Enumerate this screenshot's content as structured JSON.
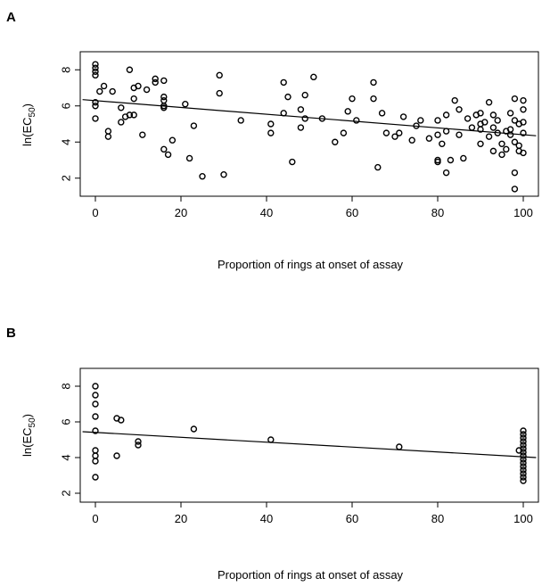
{
  "chart_data": [
    {
      "panel": "A",
      "type": "scatter",
      "xlabel": "Proportion of rings at onset of assay",
      "ylabel_main": "ln(EC",
      "ylabel_sub": "50",
      "ylabel_close": ")",
      "xlim": [
        0,
        100
      ],
      "ylim": [
        1,
        9
      ],
      "xticks": [
        0,
        20,
        40,
        60,
        80,
        100
      ],
      "yticks": [
        2,
        4,
        6,
        8
      ],
      "grid": false,
      "marker": "open-circle",
      "fit_line": {
        "x": [
          -3,
          103
        ],
        "y": [
          6.35,
          4.35
        ]
      },
      "points": [
        [
          0,
          8.3
        ],
        [
          0,
          8.1
        ],
        [
          0,
          7.9
        ],
        [
          0,
          7.7
        ],
        [
          0,
          6.2
        ],
        [
          0,
          6.0
        ],
        [
          0,
          5.3
        ],
        [
          1,
          6.8
        ],
        [
          2,
          7.1
        ],
        [
          3,
          4.6
        ],
        [
          3,
          4.3
        ],
        [
          4,
          6.8
        ],
        [
          6,
          5.9
        ],
        [
          6,
          5.1
        ],
        [
          7,
          5.4
        ],
        [
          8,
          8.0
        ],
        [
          8,
          5.5
        ],
        [
          9,
          7.0
        ],
        [
          9,
          6.4
        ],
        [
          9,
          5.5
        ],
        [
          10,
          7.1
        ],
        [
          11,
          4.4
        ],
        [
          12,
          6.9
        ],
        [
          14,
          7.5
        ],
        [
          14,
          7.3
        ],
        [
          16,
          7.4
        ],
        [
          16,
          6.5
        ],
        [
          16,
          6.3
        ],
        [
          16,
          6.0
        ],
        [
          16,
          5.9
        ],
        [
          16,
          3.6
        ],
        [
          17,
          3.3
        ],
        [
          18,
          4.1
        ],
        [
          21,
          6.1
        ],
        [
          22,
          3.1
        ],
        [
          23,
          4.9
        ],
        [
          25,
          2.1
        ],
        [
          29,
          7.7
        ],
        [
          29,
          6.7
        ],
        [
          30,
          2.2
        ],
        [
          34,
          5.2
        ],
        [
          41,
          5.0
        ],
        [
          41,
          4.5
        ],
        [
          44,
          7.3
        ],
        [
          44,
          5.6
        ],
        [
          45,
          6.5
        ],
        [
          46,
          2.9
        ],
        [
          48,
          5.8
        ],
        [
          48,
          4.8
        ],
        [
          49,
          6.6
        ],
        [
          49,
          5.3
        ],
        [
          51,
          7.6
        ],
        [
          53,
          5.3
        ],
        [
          56,
          4.0
        ],
        [
          58,
          4.5
        ],
        [
          59,
          5.7
        ],
        [
          60,
          6.4
        ],
        [
          61,
          5.2
        ],
        [
          65,
          7.3
        ],
        [
          65,
          6.4
        ],
        [
          66,
          2.6
        ],
        [
          67,
          5.6
        ],
        [
          68,
          4.5
        ],
        [
          70,
          4.3
        ],
        [
          71,
          4.5
        ],
        [
          72,
          5.4
        ],
        [
          74,
          4.1
        ],
        [
          75,
          4.9
        ],
        [
          76,
          5.2
        ],
        [
          78,
          4.2
        ],
        [
          80,
          5.2
        ],
        [
          80,
          4.4
        ],
        [
          80,
          3.0
        ],
        [
          80,
          2.9
        ],
        [
          81,
          3.9
        ],
        [
          82,
          5.5
        ],
        [
          82,
          4.6
        ],
        [
          82,
          2.3
        ],
        [
          83,
          3.0
        ],
        [
          84,
          6.3
        ],
        [
          85,
          5.8
        ],
        [
          85,
          4.4
        ],
        [
          86,
          3.1
        ],
        [
          87,
          5.3
        ],
        [
          88,
          4.8
        ],
        [
          89,
          5.5
        ],
        [
          90,
          5.6
        ],
        [
          90,
          5.0
        ],
        [
          90,
          4.7
        ],
        [
          90,
          3.9
        ],
        [
          91,
          5.1
        ],
        [
          92,
          6.2
        ],
        [
          92,
          4.3
        ],
        [
          93,
          5.5
        ],
        [
          93,
          4.8
        ],
        [
          93,
          3.5
        ],
        [
          94,
          5.2
        ],
        [
          94,
          4.5
        ],
        [
          95,
          3.9
        ],
        [
          95,
          3.3
        ],
        [
          96,
          4.6
        ],
        [
          96,
          3.6
        ],
        [
          97,
          5.6
        ],
        [
          97,
          4.7
        ],
        [
          97,
          4.4
        ],
        [
          98,
          6.4
        ],
        [
          98,
          5.2
        ],
        [
          98,
          4.0
        ],
        [
          98,
          2.3
        ],
        [
          98,
          1.4
        ],
        [
          99,
          5.0
        ],
        [
          99,
          3.8
        ],
        [
          99,
          3.5
        ],
        [
          100,
          6.3
        ],
        [
          100,
          5.8
        ],
        [
          100,
          5.1
        ],
        [
          100,
          4.5
        ],
        [
          100,
          3.4
        ]
      ]
    },
    {
      "panel": "B",
      "type": "scatter",
      "xlabel": "Proportion of rings at onset of assay",
      "ylabel_main": "ln(EC",
      "ylabel_sub": "50",
      "ylabel_close": ")",
      "xlim": [
        0,
        100
      ],
      "ylim": [
        1.5,
        9
      ],
      "xticks": [
        0,
        20,
        40,
        60,
        80,
        100
      ],
      "yticks": [
        2,
        4,
        6,
        8
      ],
      "grid": false,
      "marker": "open-circle",
      "fit_line": {
        "x": [
          -3,
          103
        ],
        "y": [
          5.45,
          4.0
        ]
      },
      "points": [
        [
          0,
          8.0
        ],
        [
          0,
          7.5
        ],
        [
          0,
          7.0
        ],
        [
          0,
          6.3
        ],
        [
          0,
          5.5
        ],
        [
          0,
          4.4
        ],
        [
          0,
          4.1
        ],
        [
          0,
          3.8
        ],
        [
          0,
          2.9
        ],
        [
          5,
          6.2
        ],
        [
          5,
          4.1
        ],
        [
          6,
          6.1
        ],
        [
          10,
          4.9
        ],
        [
          10,
          4.7
        ],
        [
          23,
          5.6
        ],
        [
          41,
          5.0
        ],
        [
          71,
          4.6
        ],
        [
          99,
          4.4
        ],
        [
          100,
          5.5
        ],
        [
          100,
          5.3
        ],
        [
          100,
          5.1
        ],
        [
          100,
          4.9
        ],
        [
          100,
          4.7
        ],
        [
          100,
          4.5
        ],
        [
          100,
          4.3
        ],
        [
          100,
          4.1
        ],
        [
          100,
          3.9
        ],
        [
          100,
          3.7
        ],
        [
          100,
          3.5
        ],
        [
          100,
          3.3
        ],
        [
          100,
          3.1
        ],
        [
          100,
          2.9
        ],
        [
          100,
          2.7
        ]
      ]
    }
  ]
}
